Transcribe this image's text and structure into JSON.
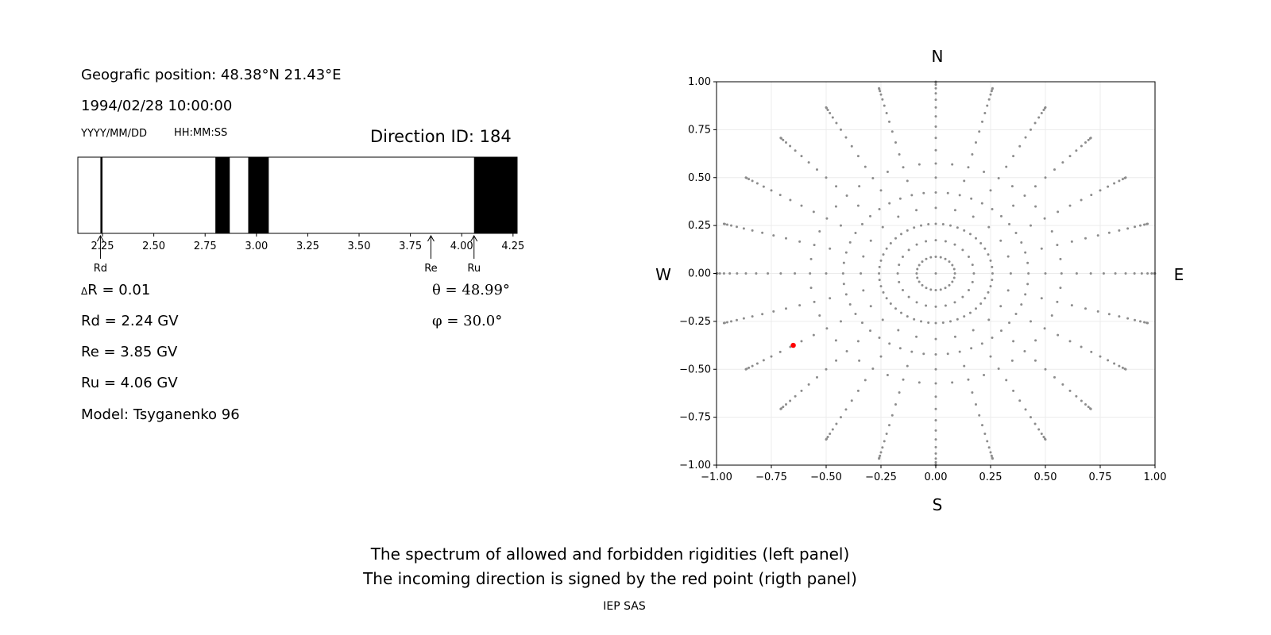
{
  "left_panel": {
    "position_text": "Geografic position: 48.38°N 21.43°E",
    "datetime_text": "1994/02/28 10:00:00",
    "date_format": "YYYY/MM/DD",
    "time_format": "HH:MM:SS",
    "direction_id": "Direction ID: 184",
    "delta_r": "R = 0.01",
    "delta_symbol": "Δ",
    "rd_text": "Rd = 2.24 GV",
    "re_text": "Re = 3.85 GV",
    "ru_text": "Ru = 4.06 GV",
    "model_text": "Model: Tsyganenko 96",
    "theta_text": "θ = 48.99°",
    "phi_text": "φ = 30.0°"
  },
  "right_panel": {
    "label_n": "N",
    "label_s": "S",
    "label_w": "W",
    "label_e": "E"
  },
  "footer": {
    "line1": "The spectrum of allowed and forbidden rigidities (left panel)",
    "line2": "The incoming direction is signed by the red point (rigth panel)",
    "credit": "IEP SAS"
  },
  "chart_data": [
    {
      "type": "bar",
      "name": "rigidity-spectrum",
      "xlim": [
        2.13,
        4.27
      ],
      "xticks": [
        "2.25",
        "2.50",
        "2.75",
        "3.00",
        "3.25",
        "3.50",
        "3.75",
        "4.00",
        "4.25"
      ],
      "xtick_values": [
        2.25,
        2.5,
        2.75,
        3.0,
        3.25,
        3.5,
        3.75,
        4.0,
        4.25
      ],
      "forbidden_bands": [
        [
          2.24,
          2.25
        ],
        [
          2.8,
          2.87
        ],
        [
          2.96,
          3.06
        ],
        [
          4.06,
          4.27
        ]
      ],
      "markers": [
        {
          "label": "Rd",
          "value": 2.24
        },
        {
          "label": "Re",
          "value": 3.85
        },
        {
          "label": "Ru",
          "value": 4.06
        }
      ],
      "colors": {
        "forbidden": "#000000",
        "allowed": "#ffffff"
      }
    },
    {
      "type": "scatter",
      "name": "direction-grid",
      "xlim": [
        -1,
        1
      ],
      "ylim": [
        -1,
        1
      ],
      "xticks": [
        "−1.00",
        "−0.75",
        "−0.50",
        "−0.25",
        "0.00",
        "0.25",
        "0.50",
        "0.75",
        "1.00"
      ],
      "yticks": [
        "1.00",
        "0.75",
        "0.50",
        "0.25",
        "0.00",
        "−0.25",
        "−0.50",
        "−0.75",
        "−1.00"
      ],
      "tick_values": [
        -1,
        -0.75,
        -0.5,
        -0.25,
        0,
        0.25,
        0.5,
        0.75,
        1
      ],
      "grid": true,
      "grid_series": {
        "color": "#8c8c8c",
        "azimuth_step_deg": 15,
        "zenith_step_deg": 5,
        "rings_deg": [
          15,
          25,
          35
        ],
        "ring_point_count": 24
      },
      "selected_point": {
        "x": -0.65,
        "y": -0.375,
        "color": "#ff0000"
      }
    }
  ]
}
